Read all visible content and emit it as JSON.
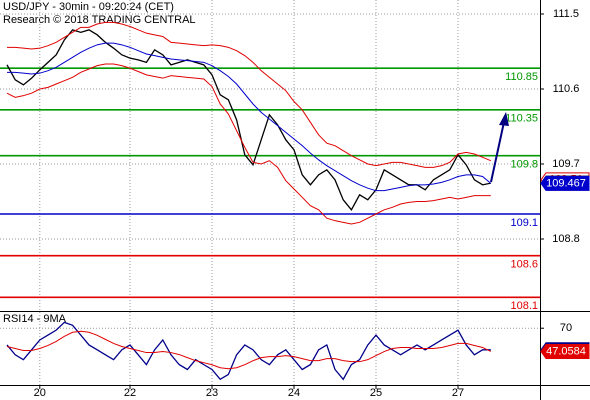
{
  "chart_data": [
    {
      "type": "line",
      "title": "USD/JPY - 30min - 09:20:24 (CET)",
      "subtitle": "Research © 2018 TRADING CENTRAL",
      "categories": [
        null,
        null,
        null,
        null,
        "20",
        null,
        null,
        null,
        null,
        null,
        null,
        null,
        null,
        null,
        null,
        "22",
        null,
        null,
        null,
        null,
        null,
        null,
        null,
        null,
        null,
        "23",
        null,
        null,
        null,
        null,
        null,
        null,
        null,
        null,
        null,
        "24",
        null,
        null,
        null,
        null,
        null,
        null,
        null,
        null,
        null,
        "25",
        null,
        null,
        null,
        null,
        null,
        null,
        null,
        null,
        null,
        "27",
        null,
        null,
        null,
        null
      ],
      "ylim": [
        107.948,
        111.668
      ],
      "yticks": [
        111.5,
        110.6,
        109.7,
        108.8
      ],
      "grid": true,
      "series": [
        {
          "color": "#000000",
          "last_tag": true,
          "values": [
            110.89,
            110.71,
            110.65,
            110.73,
            110.83,
            110.92,
            111.01,
            111.19,
            111.31,
            111.28,
            111.31,
            111.25,
            111.16,
            111.09,
            111.01,
            110.97,
            110.95,
            110.92,
            111.07,
            111.01,
            110.89,
            110.92,
            110.95,
            110.92,
            110.89,
            110.77,
            110.53,
            110.47,
            110.23,
            109.81,
            109.69,
            109.99,
            110.29,
            110.17,
            109.99,
            109.87,
            109.57,
            109.45,
            109.57,
            109.63,
            109.51,
            109.27,
            109.15,
            109.33,
            109.27,
            109.39,
            109.63,
            109.57,
            109.51,
            109.45,
            109.45,
            109.39,
            109.51,
            109.57,
            109.63,
            109.81,
            109.69,
            109.51,
            109.45,
            109.471
          ]
        },
        {
          "color": "#e00000",
          "last_tag": false,
          "values": [
            111.1,
            111.1,
            111.09,
            111.08,
            111.09,
            111.12,
            111.16,
            111.22,
            111.28,
            111.34,
            111.34,
            111.38,
            111.4,
            111.4,
            111.38,
            111.35,
            111.31,
            111.27,
            111.25,
            111.23,
            111.16,
            111.15,
            111.14,
            111.13,
            111.12,
            111.13,
            111.12,
            111.1,
            111.06,
            111.0,
            110.92,
            110.82,
            110.74,
            110.66,
            110.58,
            110.45,
            110.35,
            110.2,
            110.05,
            109.95,
            109.92,
            109.86,
            109.8,
            109.75,
            109.7,
            109.68,
            109.7,
            109.72,
            109.72,
            109.7,
            109.68,
            109.66,
            109.66,
            109.68,
            109.72,
            109.82,
            109.84,
            109.82,
            109.78,
            109.74
          ]
        },
        {
          "color": "#e00000",
          "last_tag": false,
          "values": [
            110.55,
            110.5,
            110.52,
            110.55,
            110.6,
            110.62,
            110.66,
            110.7,
            110.74,
            110.8,
            110.84,
            110.88,
            110.9,
            110.9,
            110.88,
            110.85,
            110.81,
            110.77,
            110.75,
            110.73,
            110.76,
            110.75,
            110.74,
            110.73,
            110.72,
            110.63,
            110.42,
            110.3,
            110.1,
            109.9,
            109.72,
            109.7,
            109.74,
            109.66,
            109.5,
            109.4,
            109.3,
            109.2,
            109.15,
            109.05,
            109.02,
            109.0,
            108.98,
            109.0,
            109.05,
            109.1,
            109.15,
            109.18,
            109.22,
            109.24,
            109.25,
            109.25,
            109.26,
            109.28,
            109.3,
            109.28,
            109.3,
            109.32,
            109.32,
            109.32
          ]
        },
        {
          "color": "#0000cc",
          "last_tag": true,
          "values": [
            110.8,
            110.8,
            110.79,
            110.78,
            110.79,
            110.82,
            110.86,
            110.92,
            110.98,
            111.04,
            111.09,
            111.13,
            111.15,
            111.15,
            111.13,
            111.1,
            111.06,
            111.02,
            111.0,
            110.98,
            110.96,
            110.95,
            110.94,
            110.93,
            110.92,
            110.88,
            110.82,
            110.75,
            110.66,
            110.54,
            110.42,
            110.32,
            110.24,
            110.16,
            110.08,
            110.0,
            109.92,
            109.83,
            109.75,
            109.68,
            109.62,
            109.56,
            109.5,
            109.45,
            109.41,
            109.38,
            109.38,
            109.4,
            109.42,
            109.44,
            109.45,
            109.45,
            109.46,
            109.48,
            109.51,
            109.55,
            109.57,
            109.57,
            109.55,
            109.467
          ]
        }
      ],
      "levels": [
        {
          "value": 110.85,
          "color": "#009900"
        },
        {
          "value": 110.35,
          "color": "#009900"
        },
        {
          "value": 109.8,
          "color": "#009900"
        },
        {
          "value": 109.1,
          "color": "#0000cc"
        },
        {
          "value": 108.6,
          "color": "#e00000"
        },
        {
          "value": 108.1,
          "color": "#e00000"
        }
      ],
      "price_tags": [
        {
          "value": 109.51,
          "color": "#e00000"
        }
      ]
    },
    {
      "type": "line",
      "title": "RSI14 - 9MA",
      "ylim": [
        14,
        86
      ],
      "yticks": [
        70
      ],
      "grid": true,
      "series": [
        {
          "color": "#00008b",
          "last_tag": true,
          "values": [
            53.5,
            43.8,
            39.0,
            48.7,
            58.4,
            63.2,
            68.1,
            75.8,
            72.9,
            63.2,
            53.5,
            48.7,
            43.8,
            39.0,
            48.7,
            53.5,
            43.8,
            34.1,
            48.7,
            58.4,
            43.8,
            34.1,
            29.3,
            39.0,
            34.1,
            29.3,
            19.6,
            24.4,
            43.8,
            53.5,
            48.7,
            39.0,
            34.1,
            43.8,
            48.7,
            39.0,
            29.3,
            34.1,
            48.7,
            53.5,
            29.3,
            19.6,
            34.1,
            39.0,
            53.5,
            63.2,
            53.5,
            48.7,
            43.8,
            48.7,
            53.5,
            48.7,
            53.5,
            58.4,
            63.2,
            68.1,
            53.5,
            43.8,
            48.7,
            48.7164
          ]
        },
        {
          "color": "#e00000",
          "last_tag": true,
          "values": [
            52,
            50,
            48,
            48,
            50,
            53,
            57,
            62,
            66,
            67,
            66,
            63,
            59,
            55,
            52,
            50,
            48,
            46,
            46,
            47,
            46,
            44,
            41,
            38,
            36,
            34,
            31,
            30,
            31,
            34,
            38,
            41,
            42,
            42,
            43,
            42,
            40,
            38,
            38,
            40,
            40,
            38,
            37,
            37,
            39,
            43,
            47,
            50,
            51,
            51,
            50,
            50,
            50,
            51,
            53,
            55,
            55,
            53,
            51,
            47.0584
          ]
        }
      ]
    }
  ]
}
